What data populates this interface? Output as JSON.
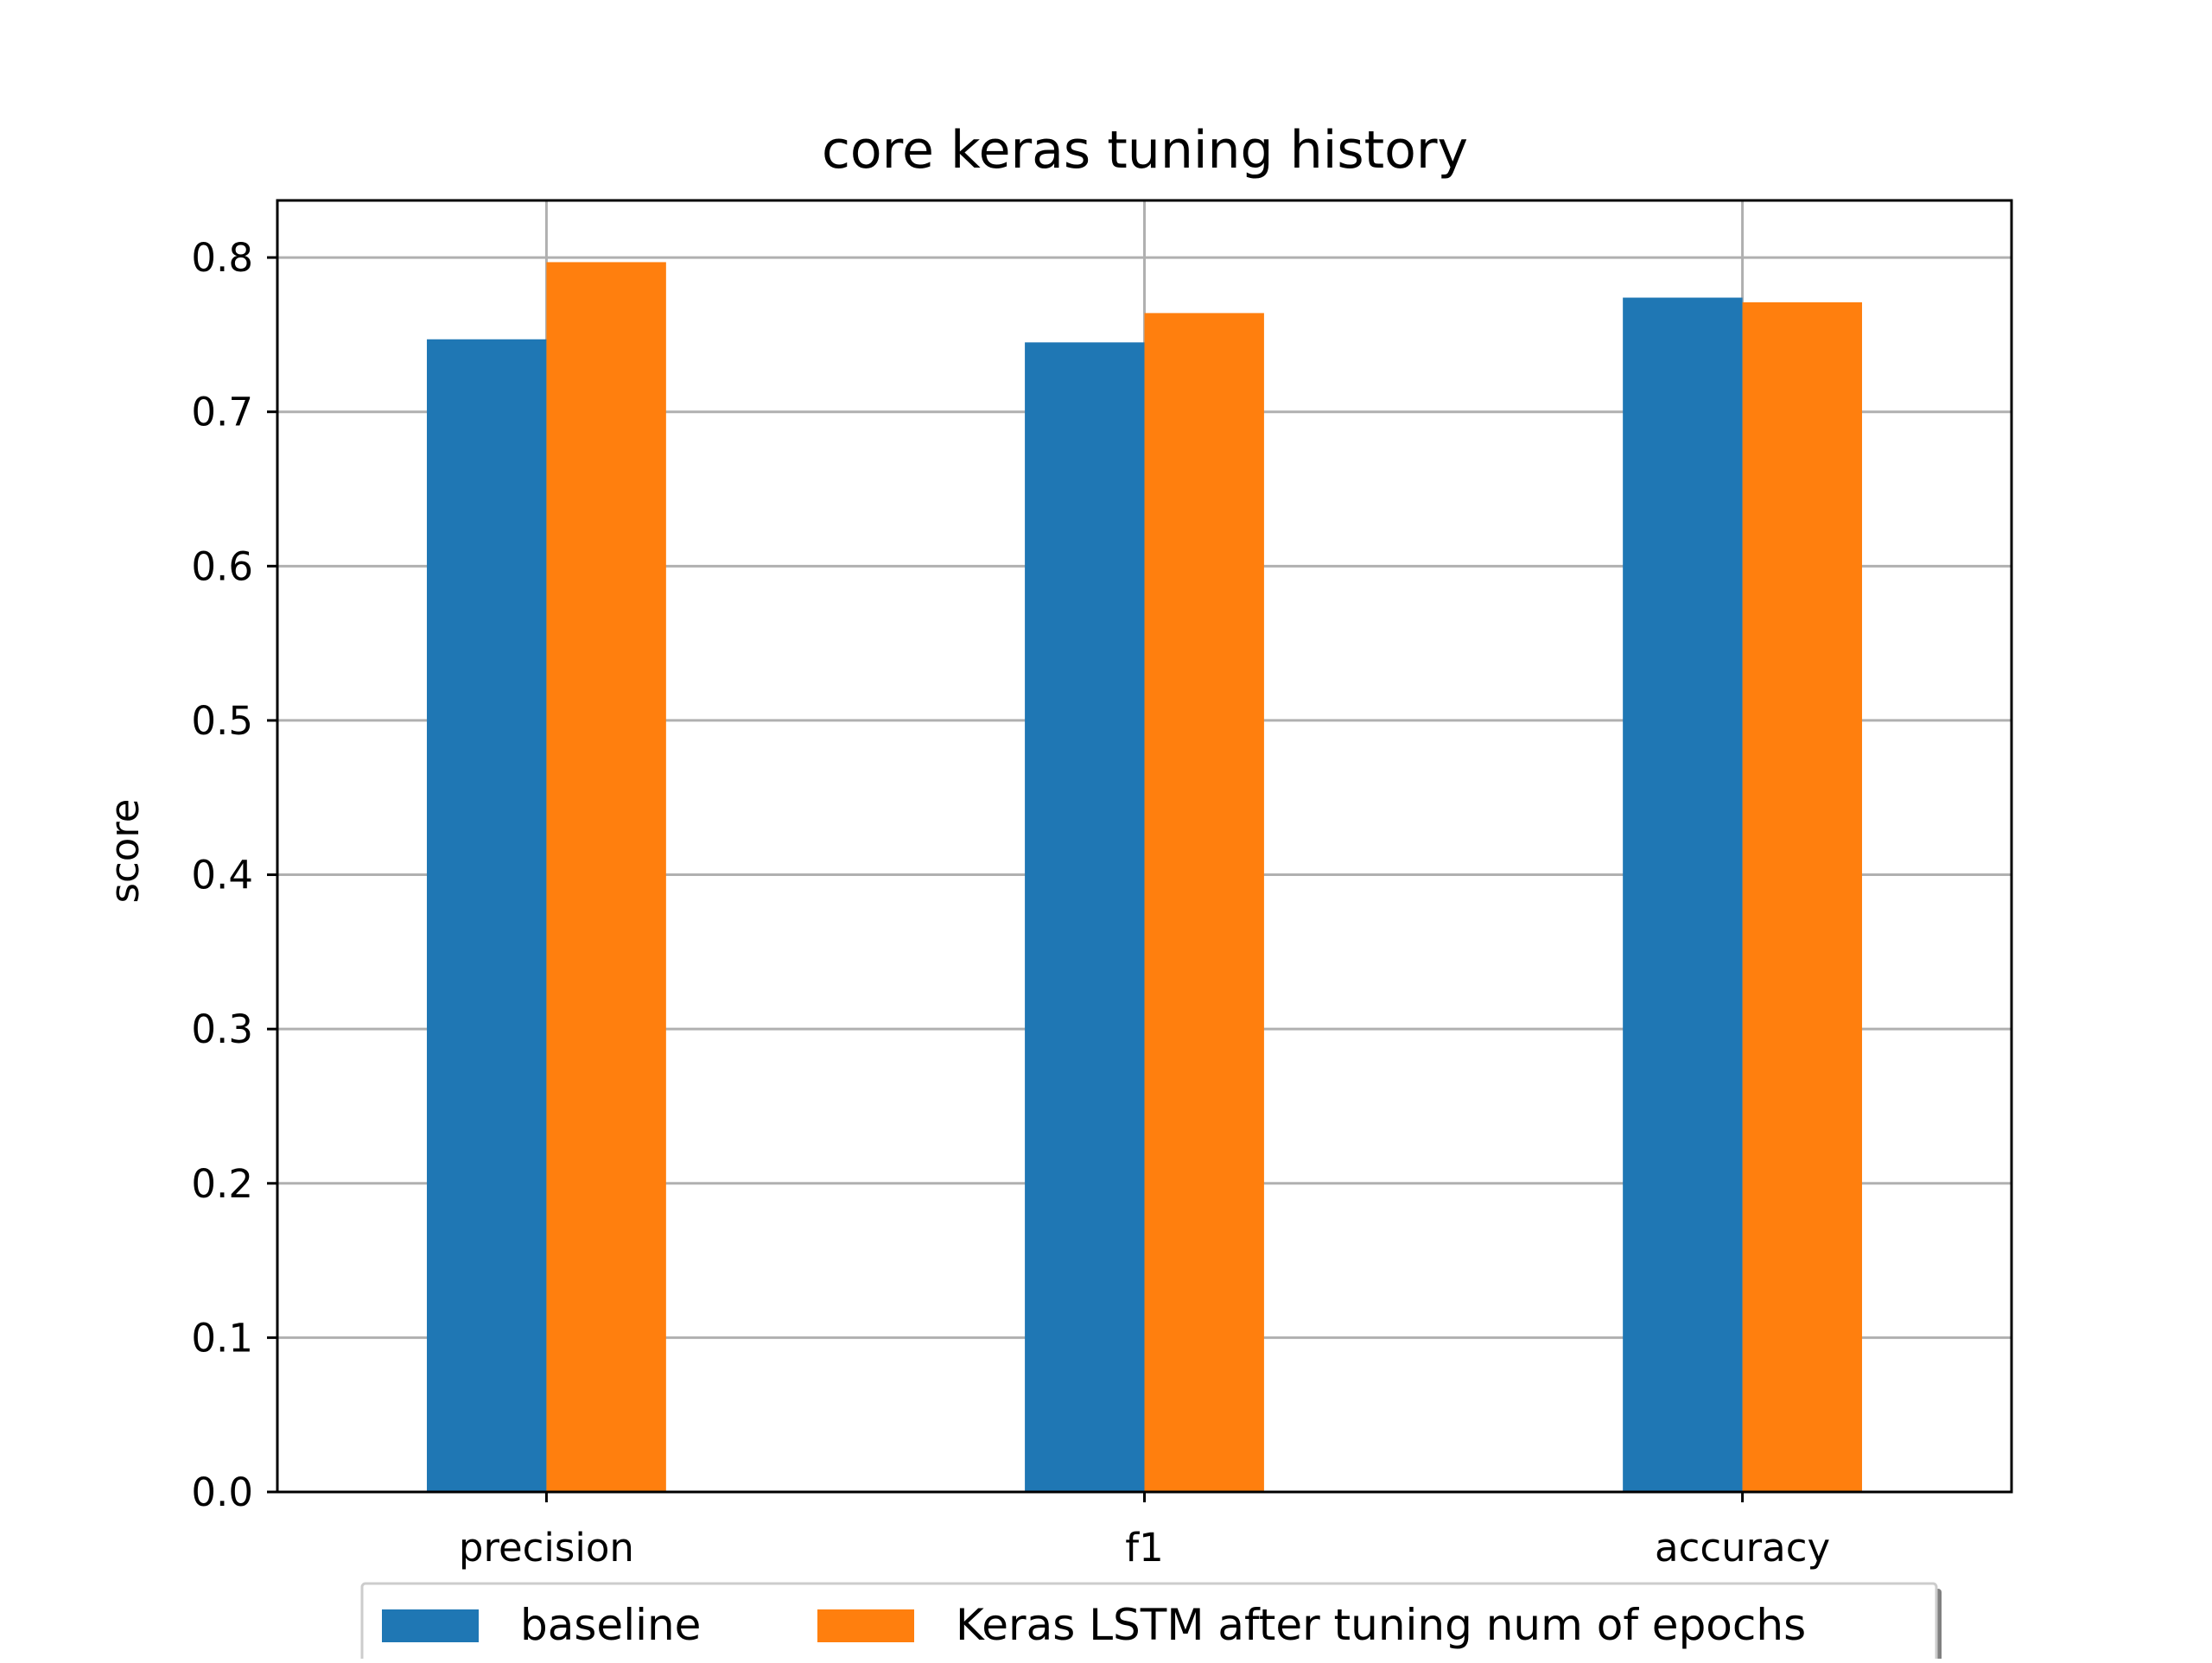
{
  "chart_data": {
    "type": "bar",
    "title": "core keras tuning history",
    "xlabel": "",
    "ylabel": "score",
    "categories": [
      "precision",
      "f1",
      "accuracy"
    ],
    "series": [
      {
        "name": "baseline",
        "values": [
          0.747,
          0.745,
          0.774
        ],
        "color": "#1f77b4"
      },
      {
        "name": "Keras LSTM after tuning num of epochs",
        "values": [
          0.797,
          0.764,
          0.771
        ],
        "color": "#ff7f0e"
      }
    ],
    "ylim": [
      0,
      0.837
    ],
    "yticks": [
      "0.0",
      "0.1",
      "0.2",
      "0.3",
      "0.4",
      "0.5",
      "0.6",
      "0.7",
      "0.8"
    ],
    "grid": true,
    "legend_position": "bottom-center"
  }
}
